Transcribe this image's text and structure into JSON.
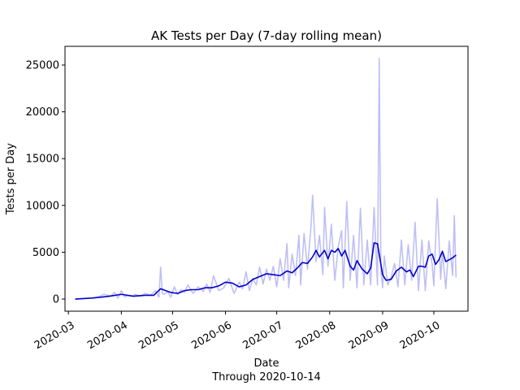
{
  "chart_data": {
    "type": "line",
    "title": "AK Tests per Day (7-day rolling mean)",
    "xlabel": "Date",
    "xlabel_sub": "Through 2020-10-14",
    "ylabel": "Tests per Day",
    "xlim": [
      "2020-02-28",
      "2020-10-21"
    ],
    "ylim": [
      -1300,
      27000
    ],
    "grid": false,
    "x_ticks": [
      "2020-03",
      "2020-04",
      "2020-05",
      "2020-06",
      "2020-07",
      "2020-08",
      "2020-09",
      "2020-10"
    ],
    "x_tick_dates": [
      "2020-03-01",
      "2020-04-01",
      "2020-05-01",
      "2020-06-01",
      "2020-07-01",
      "2020-08-01",
      "2020-09-01",
      "2020-10-01"
    ],
    "y_ticks": [
      0,
      5000,
      10000,
      15000,
      20000,
      25000
    ],
    "y_tick_labels": [
      "0",
      "5000",
      "10000",
      "15000",
      "20000",
      "25000"
    ],
    "colors": {
      "daily": "#bfbff5",
      "rolling": "#0000cc"
    },
    "series": [
      {
        "role": "daily",
        "x": [
          "2020-03-05",
          "2020-03-12",
          "2020-03-18",
          "2020-03-22",
          "2020-03-26",
          "2020-03-28",
          "2020-03-30",
          "2020-04-01",
          "2020-04-03",
          "2020-04-05",
          "2020-04-07",
          "2020-04-09",
          "2020-04-12",
          "2020-04-15",
          "2020-04-18",
          "2020-04-21",
          "2020-04-23",
          "2020-04-24",
          "2020-04-25",
          "2020-04-26",
          "2020-04-28",
          "2020-04-30",
          "2020-05-02",
          "2020-05-04",
          "2020-05-06",
          "2020-05-08",
          "2020-05-10",
          "2020-05-13",
          "2020-05-16",
          "2020-05-19",
          "2020-05-21",
          "2020-05-23",
          "2020-05-25",
          "2020-05-28",
          "2020-05-31",
          "2020-06-03",
          "2020-06-06",
          "2020-06-09",
          "2020-06-11",
          "2020-06-13",
          "2020-06-15",
          "2020-06-17",
          "2020-06-19",
          "2020-06-21",
          "2020-06-23",
          "2020-06-25",
          "2020-06-27",
          "2020-06-29",
          "2020-07-01",
          "2020-07-03",
          "2020-07-05",
          "2020-07-07",
          "2020-07-08",
          "2020-07-10",
          "2020-07-12",
          "2020-07-14",
          "2020-07-15",
          "2020-07-17",
          "2020-07-19",
          "2020-07-21",
          "2020-07-22",
          "2020-07-24",
          "2020-07-26",
          "2020-07-28",
          "2020-07-29",
          "2020-07-31",
          "2020-08-02",
          "2020-08-04",
          "2020-08-06",
          "2020-08-08",
          "2020-08-09",
          "2020-08-11",
          "2020-08-13",
          "2020-08-15",
          "2020-08-17",
          "2020-08-19",
          "2020-08-21",
          "2020-08-23",
          "2020-08-25",
          "2020-08-27",
          "2020-08-29",
          "2020-08-30",
          "2020-08-31",
          "2020-09-01",
          "2020-09-02",
          "2020-09-04",
          "2020-09-06",
          "2020-09-08",
          "2020-09-10",
          "2020-09-12",
          "2020-09-14",
          "2020-09-16",
          "2020-09-18",
          "2020-09-20",
          "2020-09-22",
          "2020-09-24",
          "2020-09-26",
          "2020-09-28",
          "2020-09-30",
          "2020-10-01",
          "2020-10-03",
          "2020-10-05",
          "2020-10-06",
          "2020-10-08",
          "2020-10-10",
          "2020-10-12",
          "2020-10-13",
          "2020-10-14"
        ],
        "values": [
          0,
          100,
          200,
          500,
          300,
          700,
          100,
          900,
          200,
          400,
          300,
          500,
          300,
          600,
          400,
          900,
          200,
          3400,
          600,
          500,
          800,
          200,
          1300,
          500,
          1000,
          700,
          1500,
          600,
          1300,
          800,
          1600,
          700,
          2500,
          900,
          1200,
          2200,
          600,
          1800,
          1100,
          2900,
          900,
          2200,
          1500,
          3400,
          1600,
          3200,
          2000,
          3500,
          1300,
          4300,
          2000,
          5900,
          1200,
          4800,
          2500,
          6800,
          1500,
          7000,
          3200,
          7600,
          11100,
          4000,
          6800,
          2600,
          9800,
          3500,
          8000,
          2000,
          5600,
          7300,
          1200,
          10400,
          2000,
          6800,
          1200,
          9700,
          1500,
          6300,
          1500,
          9800,
          1500,
          25700,
          3100,
          1200,
          4600,
          1500,
          2300,
          3800,
          1300,
          6300,
          1500,
          5800,
          2000,
          8200,
          900,
          6300,
          900,
          6200,
          3700,
          1400,
          10700,
          2100,
          5100,
          1100,
          6200,
          2500,
          8900,
          2300
        ]
      },
      {
        "role": "rolling",
        "x": [
          "2020-03-05",
          "2020-03-15",
          "2020-03-25",
          "2020-04-01",
          "2020-04-08",
          "2020-04-15",
          "2020-04-20",
          "2020-04-24",
          "2020-04-30",
          "2020-05-04",
          "2020-05-08",
          "2020-05-12",
          "2020-05-16",
          "2020-05-20",
          "2020-05-24",
          "2020-05-28",
          "2020-06-01",
          "2020-06-05",
          "2020-06-09",
          "2020-06-13",
          "2020-06-17",
          "2020-06-21",
          "2020-06-25",
          "2020-06-29",
          "2020-07-03",
          "2020-07-07",
          "2020-07-10",
          "2020-07-13",
          "2020-07-16",
          "2020-07-19",
          "2020-07-22",
          "2020-07-24",
          "2020-07-26",
          "2020-07-29",
          "2020-07-31",
          "2020-08-02",
          "2020-08-04",
          "2020-08-06",
          "2020-08-08",
          "2020-08-10",
          "2020-08-13",
          "2020-08-15",
          "2020-08-17",
          "2020-08-20",
          "2020-08-23",
          "2020-08-25",
          "2020-08-27",
          "2020-08-29",
          "2020-09-01",
          "2020-09-03",
          "2020-09-06",
          "2020-09-09",
          "2020-09-12",
          "2020-09-15",
          "2020-09-17",
          "2020-09-19",
          "2020-09-22",
          "2020-09-24",
          "2020-09-26",
          "2020-09-28",
          "2020-09-30",
          "2020-10-02",
          "2020-10-04",
          "2020-10-06",
          "2020-10-08",
          "2020-10-10",
          "2020-10-12",
          "2020-10-14"
        ],
        "values": [
          0,
          100,
          300,
          500,
          300,
          400,
          400,
          1100,
          700,
          600,
          900,
          1000,
          1000,
          1200,
          1200,
          1400,
          1800,
          1700,
          1300,
          1500,
          2100,
          2400,
          2700,
          2600,
          2500,
          3000,
          2800,
          3300,
          3900,
          3800,
          4500,
          5200,
          4500,
          5200,
          4300,
          5200,
          5000,
          5400,
          4600,
          5200,
          3500,
          3100,
          4100,
          3200,
          2700,
          3300,
          6000,
          5900,
          2600,
          2000,
          2100,
          3000,
          3400,
          2900,
          3100,
          2400,
          3500,
          3500,
          3400,
          4600,
          4800,
          3700,
          4200,
          5100,
          4000,
          4200,
          4400,
          4700
        ]
      }
    ]
  }
}
